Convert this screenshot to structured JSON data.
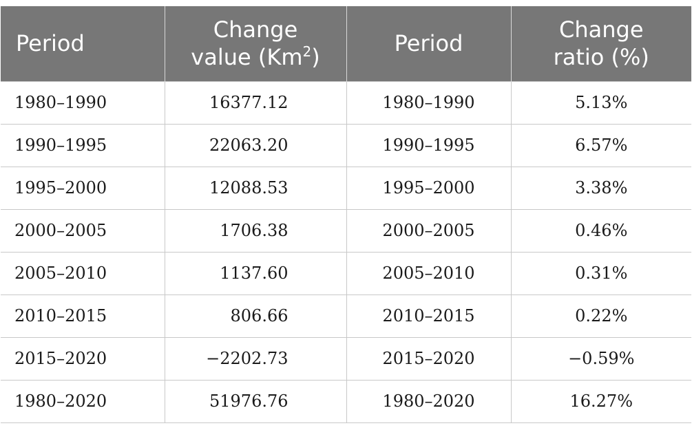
{
  "table": {
    "headers": {
      "period_1": "Period",
      "change_value_main": "Change",
      "change_value_unit_prefix": "value (Km",
      "change_value_unit_sup": "2",
      "change_value_unit_suffix": ")",
      "period_2": "Period",
      "change_ratio_main": "Change",
      "change_ratio_sub": "ratio (%)"
    },
    "rows": [
      {
        "period": "1980–1990",
        "change_value": "16377.12",
        "period2": "1980–1990",
        "change_ratio": "5.13%"
      },
      {
        "period": "1990–1995",
        "change_value": "22063.20",
        "period2": "1990–1995",
        "change_ratio": "6.57%"
      },
      {
        "period": "1995–2000",
        "change_value": "12088.53",
        "period2": "1995–2000",
        "change_ratio": "3.38%"
      },
      {
        "period": "2000–2005",
        "change_value": "1706.38",
        "period2": "2000–2005",
        "change_ratio": "0.46%"
      },
      {
        "period": "2005–2010",
        "change_value": "1137.60",
        "period2": "2005–2010",
        "change_ratio": "0.31%"
      },
      {
        "period": "2010–2015",
        "change_value": "806.66",
        "period2": "2010–2015",
        "change_ratio": "0.22%"
      },
      {
        "period": "2015–2020",
        "change_value": "−2202.73",
        "period2": "2015–2020",
        "change_ratio": "−0.59%"
      },
      {
        "period": "1980–2020",
        "change_value": "51976.76",
        "period2": "1980–2020",
        "change_ratio": "16.27%"
      }
    ]
  }
}
